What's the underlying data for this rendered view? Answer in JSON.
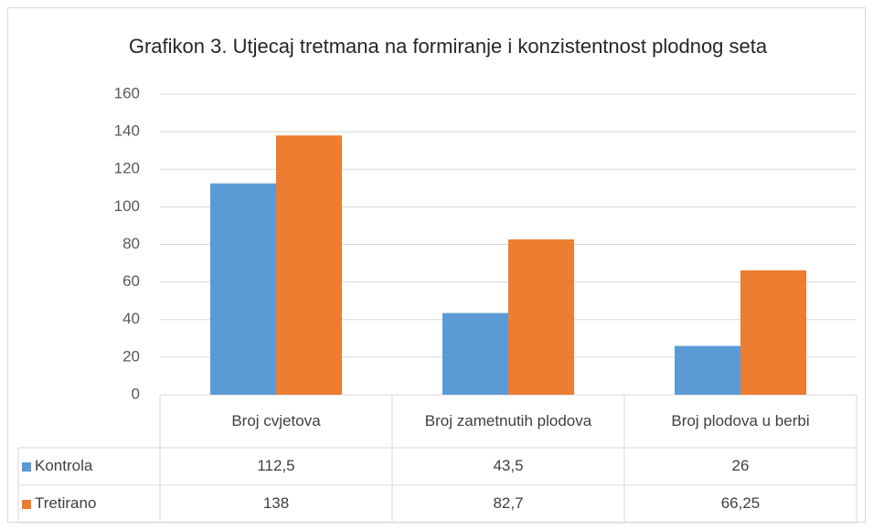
{
  "chart_data": {
    "type": "bar",
    "title": "Grafikon 3. Utjecaj tretmana na formiranje i konzistentnost plodnog seta",
    "categories": [
      "Broj cvjetova",
      "Broj zametnutih plodova",
      "Broj plodova u berbi"
    ],
    "series": [
      {
        "name": "Kontrola",
        "color": "#5b9bd5",
        "values": [
          112.5,
          43.5,
          26
        ],
        "value_labels": [
          "112,5",
          "43,5",
          "26"
        ]
      },
      {
        "name": "Tretirano",
        "color": "#ed7d31",
        "values": [
          138,
          82.7,
          66.25
        ],
        "value_labels": [
          "138",
          "82,7",
          "66,25"
        ]
      }
    ],
    "ylim": [
      0,
      160
    ],
    "yticks": [
      0,
      20,
      40,
      60,
      80,
      100,
      120,
      140,
      160
    ],
    "grid": true
  }
}
